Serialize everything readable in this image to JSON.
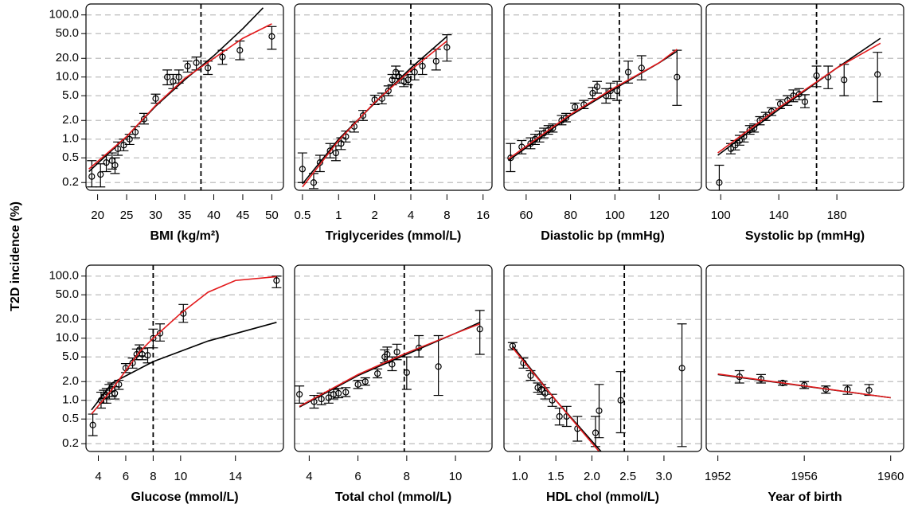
{
  "y_axis": {
    "title": "T2D incidence (%)",
    "scale": "log",
    "ylim": [
      0.15,
      150
    ],
    "yticks": [
      0.2,
      0.5,
      {
        "value": 1,
        "label": "1.0"
      },
      {
        "value": 2,
        "label": "2.0"
      },
      {
        "value": 5,
        "label": "5.0"
      },
      {
        "value": 10,
        "label": "10.0"
      },
      {
        "value": 20,
        "label": "20.0"
      },
      {
        "value": 50,
        "label": "50.0"
      },
      {
        "value": 100,
        "label": "100.0"
      }
    ],
    "grid": true
  },
  "chart_data": [
    {
      "type": "errorbar",
      "xlabel": "BMI (kg/m²)",
      "xscale": "linear",
      "xlim": [
        18,
        52
      ],
      "xticks": [
        20,
        25,
        30,
        35,
        40,
        45,
        50
      ],
      "threshold": 37.8,
      "x": [
        19,
        20.5,
        21.5,
        22.5,
        23,
        23.5,
        24.5,
        25.5,
        26.5,
        28,
        30,
        32,
        33,
        34,
        35.5,
        37,
        39,
        41.5,
        44.5,
        50
      ],
      "values": [
        0.25,
        0.27,
        0.42,
        0.45,
        0.38,
        0.7,
        0.8,
        1.0,
        1.3,
        2.1,
        4.5,
        10,
        8.5,
        10,
        15,
        17,
        14,
        21,
        27,
        45
      ],
      "error_low": [
        0.17,
        0.17,
        0.3,
        0.33,
        0.28,
        0.55,
        0.65,
        0.82,
        1.05,
        1.75,
        3.8,
        7.5,
        6.5,
        8,
        12,
        13,
        11,
        16,
        19,
        28
      ],
      "error_high": [
        0.45,
        0.4,
        0.55,
        0.6,
        0.5,
        0.9,
        1.0,
        1.2,
        1.6,
        2.6,
        5.3,
        13,
        11,
        13,
        18,
        21,
        18,
        27,
        38,
        65
      ],
      "lines": [
        {
          "color": "#000000",
          "x": [
            18.5,
            25,
            30,
            35,
            40,
            45,
            48.5
          ],
          "values": [
            0.3,
            1.1,
            3.4,
            9,
            22,
            60,
            130
          ]
        },
        {
          "color": "#e31a1c",
          "x": [
            18.5,
            25,
            30,
            35,
            40,
            45,
            50
          ],
          "values": [
            0.33,
            1.1,
            3.5,
            9.5,
            20,
            42,
            72
          ]
        }
      ]
    },
    {
      "type": "errorbar",
      "xlabel": "Triglycerides (mmol/L)",
      "xscale": "log",
      "xlim": [
        0.43,
        19
      ],
      "xticks": [
        0.5,
        1,
        2,
        4,
        8,
        16
      ],
      "threshold": 4,
      "x": [
        0.5,
        0.62,
        0.7,
        0.85,
        0.95,
        1.05,
        1.15,
        1.35,
        1.6,
        2.0,
        2.3,
        2.6,
        2.8,
        3.0,
        3.2,
        3.5,
        3.8,
        4.3,
        5.0,
        6.5,
        8.0
      ],
      "values": [
        0.33,
        0.2,
        0.42,
        0.65,
        0.6,
        0.85,
        1.1,
        1.6,
        2.4,
        4.3,
        4.5,
        6,
        9,
        12,
        10,
        8.5,
        9,
        12,
        15,
        18,
        30
      ],
      "error_low": [
        0.2,
        0.16,
        0.3,
        0.5,
        0.45,
        0.68,
        0.9,
        1.3,
        2.0,
        3.6,
        3.7,
        5,
        7.5,
        9.5,
        8,
        7,
        7.5,
        9,
        11,
        13,
        18
      ],
      "error_high": [
        0.6,
        0.28,
        0.55,
        0.85,
        0.78,
        1.05,
        1.35,
        1.9,
        2.9,
        5.1,
        5.5,
        7.2,
        11,
        15,
        12.5,
        10.5,
        11,
        16,
        20,
        28,
        48
      ],
      "lines": [
        {
          "color": "#000000",
          "x": [
            0.5,
            1,
            2,
            4,
            8
          ],
          "values": [
            0.19,
            1.0,
            3.8,
            14,
            45
          ]
        },
        {
          "color": "#e31a1c",
          "x": [
            0.5,
            1,
            2,
            4,
            8
          ],
          "values": [
            0.17,
            0.95,
            3.9,
            13,
            38
          ]
        }
      ]
    },
    {
      "type": "errorbar",
      "xlabel": "Diastolic bp (mmHg)",
      "xscale": "linear",
      "xlim": [
        50,
        139
      ],
      "xticks": [
        60,
        80,
        100,
        120
      ],
      "threshold": 102,
      "x": [
        53,
        58,
        62,
        64,
        66,
        68,
        70,
        72,
        76,
        78,
        82,
        86,
        90,
        92,
        96,
        98,
        101,
        106,
        112,
        128
      ],
      "values": [
        0.5,
        0.75,
        0.85,
        1.0,
        1.1,
        1.25,
        1.4,
        1.5,
        2.0,
        2.2,
        3.3,
        3.6,
        5.5,
        7,
        5,
        6,
        6,
        12,
        14,
        10
      ],
      "error_low": [
        0.3,
        0.58,
        0.7,
        0.82,
        0.9,
        1.05,
        1.2,
        1.3,
        1.7,
        1.9,
        2.9,
        3.1,
        4.5,
        5.5,
        3.8,
        4.5,
        4.2,
        8,
        9,
        3.5
      ],
      "error_high": [
        0.85,
        0.95,
        1.05,
        1.2,
        1.35,
        1.5,
        1.65,
        1.75,
        2.4,
        2.6,
        3.8,
        4.2,
        6.8,
        8.5,
        6.5,
        8,
        8.5,
        18,
        22,
        27
      ],
      "lines": [
        {
          "color": "#000000",
          "x": [
            52,
            80,
            100,
            120,
            128
          ],
          "values": [
            0.45,
            2.4,
            6.5,
            17,
            26
          ]
        },
        {
          "color": "#e31a1c",
          "x": [
            52,
            80,
            100,
            120,
            128
          ],
          "values": [
            0.48,
            2.5,
            6.8,
            17,
            28
          ]
        }
      ]
    },
    {
      "type": "errorbar",
      "xlabel": "Systolic bp (mmHg)",
      "xscale": "linear",
      "xlim": [
        90,
        226
      ],
      "xticks": [
        100,
        140,
        180
      ],
      "threshold": 166,
      "x": [
        99,
        107,
        110,
        113,
        116,
        120,
        123,
        127,
        131,
        135,
        141,
        146,
        150,
        154,
        158,
        166,
        174,
        185,
        208
      ],
      "values": [
        0.2,
        0.7,
        0.8,
        0.95,
        1.1,
        1.4,
        1.5,
        2.0,
        2.3,
        2.8,
        3.7,
        4.2,
        5,
        5.3,
        4,
        10.5,
        10,
        9,
        11
      ],
      "error_low": [
        0.13,
        0.58,
        0.67,
        0.8,
        0.9,
        1.2,
        1.3,
        1.7,
        2.0,
        2.4,
        3.1,
        3.5,
        4,
        4.3,
        3.2,
        7,
        6.5,
        5,
        4
      ],
      "error_high": [
        0.38,
        0.85,
        0.95,
        1.15,
        1.3,
        1.65,
        1.75,
        2.3,
        2.7,
        3.2,
        4.3,
        5,
        6.2,
        6.5,
        5.2,
        15,
        15,
        16,
        25
      ],
      "lines": [
        {
          "color": "#000000",
          "x": [
            98,
            140,
            180,
            210
          ],
          "values": [
            0.55,
            3,
            14,
            42
          ]
        },
        {
          "color": "#e31a1c",
          "x": [
            98,
            140,
            180,
            210
          ],
          "values": [
            0.6,
            3.2,
            14,
            35
          ]
        }
      ]
    },
    {
      "type": "errorbar",
      "xlabel": "Glucose (mmol/L)",
      "xscale": "linear",
      "xlim": [
        3.1,
        17.5
      ],
      "xticks": [
        4,
        6,
        8,
        10,
        14
      ],
      "threshold": 8,
      "x": [
        3.6,
        4.2,
        4.4,
        4.6,
        4.8,
        5.0,
        5.2,
        5.5,
        6.0,
        6.5,
        6.8,
        7.0,
        7.2,
        7.6,
        8.0,
        8.5,
        10.2,
        17
      ],
      "values": [
        0.4,
        1.0,
        1.15,
        1.2,
        1.4,
        1.5,
        1.3,
        1.8,
        3.3,
        4.0,
        5.5,
        6.5,
        5.5,
        5.3,
        10,
        12,
        25,
        85
      ],
      "error_low": [
        0.27,
        0.75,
        0.9,
        0.9,
        1.05,
        1.15,
        1.05,
        1.5,
        2.8,
        3.3,
        4.5,
        5.2,
        4.5,
        4,
        7,
        9,
        18,
        65
      ],
      "error_high": [
        0.6,
        1.35,
        1.45,
        1.55,
        1.8,
        1.9,
        1.65,
        2.1,
        3.9,
        4.8,
        6.7,
        7.8,
        6.8,
        7,
        14,
        17,
        35,
        100
      ],
      "lines": [
        {
          "color": "#000000",
          "x": [
            3.5,
            5,
            8,
            12,
            17
          ],
          "values": [
            0.7,
            1.9,
            4.2,
            9,
            18
          ]
        },
        {
          "color": "#e31a1c",
          "x": [
            3.5,
            5,
            6,
            7,
            8,
            10,
            12,
            14,
            17
          ],
          "values": [
            0.6,
            1.5,
            3,
            6,
            10,
            25,
            55,
            85,
            98
          ]
        }
      ]
    },
    {
      "type": "errorbar",
      "xlabel": "Total chol (mmol/L)",
      "xscale": "linear",
      "xlim": [
        3.4,
        11.5
      ],
      "xticks": [
        4,
        6,
        8,
        10
      ],
      "threshold": 7.9,
      "x": [
        3.6,
        4.2,
        4.5,
        4.8,
        5.0,
        5.2,
        5.5,
        6.0,
        6.3,
        6.8,
        7.1,
        7.2,
        7.4,
        7.6,
        8.0,
        8.5,
        9.3,
        11
      ],
      "values": [
        1.25,
        0.95,
        1.05,
        1.1,
        1.25,
        1.3,
        1.35,
        1.8,
        2,
        2.7,
        5.0,
        5.5,
        3.8,
        6,
        2.8,
        7,
        3.5,
        14
      ],
      "error_low": [
        0.9,
        0.75,
        0.85,
        0.9,
        1.05,
        1.1,
        1.15,
        1.55,
        1.75,
        2.3,
        4,
        4.3,
        3,
        4.5,
        1.5,
        5,
        1.2,
        5.5
      ],
      "error_high": [
        1.7,
        1.2,
        1.3,
        1.35,
        1.5,
        1.55,
        1.6,
        2.1,
        2.3,
        3.2,
        6.5,
        7.2,
        5,
        8,
        5,
        11,
        11,
        28
      ],
      "lines": [
        {
          "color": "#000000",
          "x": [
            3.6,
            6,
            8,
            10,
            11
          ],
          "values": [
            0.78,
            2.5,
            5.5,
            12,
            18
          ]
        },
        {
          "color": "#e31a1c",
          "x": [
            3.6,
            6,
            8,
            10,
            11
          ],
          "values": [
            0.8,
            2.6,
            5.8,
            12,
            17
          ]
        }
      ]
    },
    {
      "type": "errorbar",
      "xlabel": "HDL chol (mmol/L)",
      "xscale": "linear",
      "xlim": [
        0.78,
        3.52
      ],
      "xticks": [
        {
          "value": 1,
          "label": "1.0"
        },
        1.5,
        {
          "value": 2,
          "label": "2.0"
        },
        2.5,
        {
          "value": 3,
          "label": "3.0"
        }
      ],
      "threshold": 2.45,
      "x": [
        0.9,
        1.05,
        1.15,
        1.25,
        1.3,
        1.35,
        1.45,
        1.55,
        1.65,
        1.8,
        2.05,
        2.1,
        2.4,
        3.25
      ],
      "values": [
        7.5,
        4,
        2.5,
        1.6,
        1.5,
        1.3,
        1.0,
        0.55,
        0.55,
        0.35,
        0.3,
        0.68,
        1.0,
        3.3
      ],
      "error_low": [
        6.5,
        3.3,
        2.1,
        1.35,
        1.25,
        1.05,
        0.8,
        0.4,
        0.38,
        0.22,
        0.18,
        0.25,
        0.3,
        0.18
      ],
      "error_high": [
        8.5,
        4.8,
        3,
        1.9,
        1.8,
        1.6,
        1.25,
        0.75,
        0.8,
        0.55,
        0.55,
        1.8,
        2.9,
        17
      ],
      "lines": [
        {
          "color": "#000000",
          "x": [
            0.9,
            1.5,
            2.15
          ],
          "values": [
            7.5,
            1,
            0.14
          ]
        },
        {
          "color": "#e31a1c",
          "x": [
            0.9,
            1.5,
            2.1
          ],
          "values": [
            7,
            1,
            0.15
          ]
        }
      ]
    },
    {
      "type": "errorbar",
      "xlabel": "Year of birth",
      "xscale": "linear",
      "xlim": [
        1951.46,
        1960.6
      ],
      "xticks": [
        1952,
        1956,
        1960
      ],
      "x": [
        1953,
        1954,
        1955,
        1956,
        1957,
        1958,
        1959
      ],
      "values": [
        2.4,
        2.2,
        1.9,
        1.75,
        1.5,
        1.5,
        1.45
      ],
      "error_low": [
        1.9,
        1.9,
        1.75,
        1.55,
        1.3,
        1.25,
        1.2
      ],
      "error_high": [
        3,
        2.6,
        2.05,
        2.0,
        1.7,
        1.75,
        1.8
      ],
      "lines": [
        {
          "color": "#000000",
          "x": [
            1952,
            1960
          ],
          "values": [
            2.6,
            1.1
          ]
        },
        {
          "color": "#e31a1c",
          "x": [
            1952,
            1960
          ],
          "values": [
            2.65,
            1.1
          ]
        }
      ]
    }
  ]
}
